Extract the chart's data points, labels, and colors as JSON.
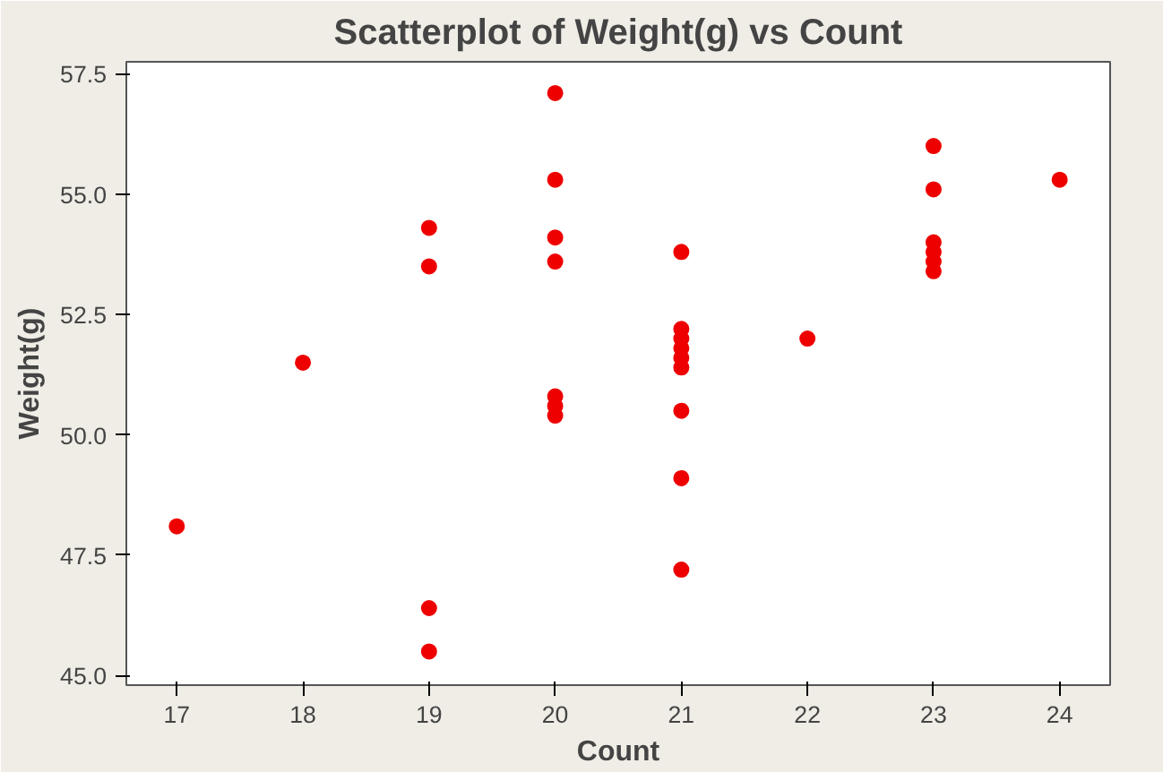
{
  "chart_data": {
    "type": "scatter",
    "title": "Scatterplot of Weight(g) vs Count",
    "xlabel": "Count",
    "ylabel": "Weight(g)",
    "x": [
      17,
      18,
      19,
      19,
      19,
      19,
      20,
      20,
      20,
      20,
      20,
      20,
      20,
      21,
      21,
      21,
      21,
      21,
      21,
      21,
      21,
      21,
      22,
      23,
      23,
      23,
      23,
      23,
      23,
      24
    ],
    "series": [
      {
        "color": "#ee0000",
        "values": [
          48.1,
          51.5,
          54.3,
          53.5,
          46.4,
          45.5,
          57.1,
          55.3,
          54.1,
          53.6,
          50.8,
          50.6,
          50.4,
          53.8,
          52.2,
          52.0,
          51.8,
          51.6,
          51.4,
          50.5,
          49.1,
          47.2,
          52.0,
          56.0,
          55.1,
          54.0,
          53.8,
          53.6,
          53.4,
          55.3
        ]
      }
    ],
    "xlim": [
      16.6,
      24.4
    ],
    "ylim": [
      44.8,
      57.75
    ],
    "xticks": [
      17,
      18,
      19,
      20,
      21,
      22,
      23,
      24
    ],
    "yticks": [
      {
        "value": 45,
        "label": "45.0"
      },
      {
        "value": 47.5,
        "label": "47.5"
      },
      {
        "value": 50,
        "label": "50.0"
      },
      {
        "value": 52.5,
        "label": "52.5"
      },
      {
        "value": 55,
        "label": "55.0"
      },
      {
        "value": 57.5,
        "label": "57.5"
      }
    ],
    "marker": "circle"
  }
}
